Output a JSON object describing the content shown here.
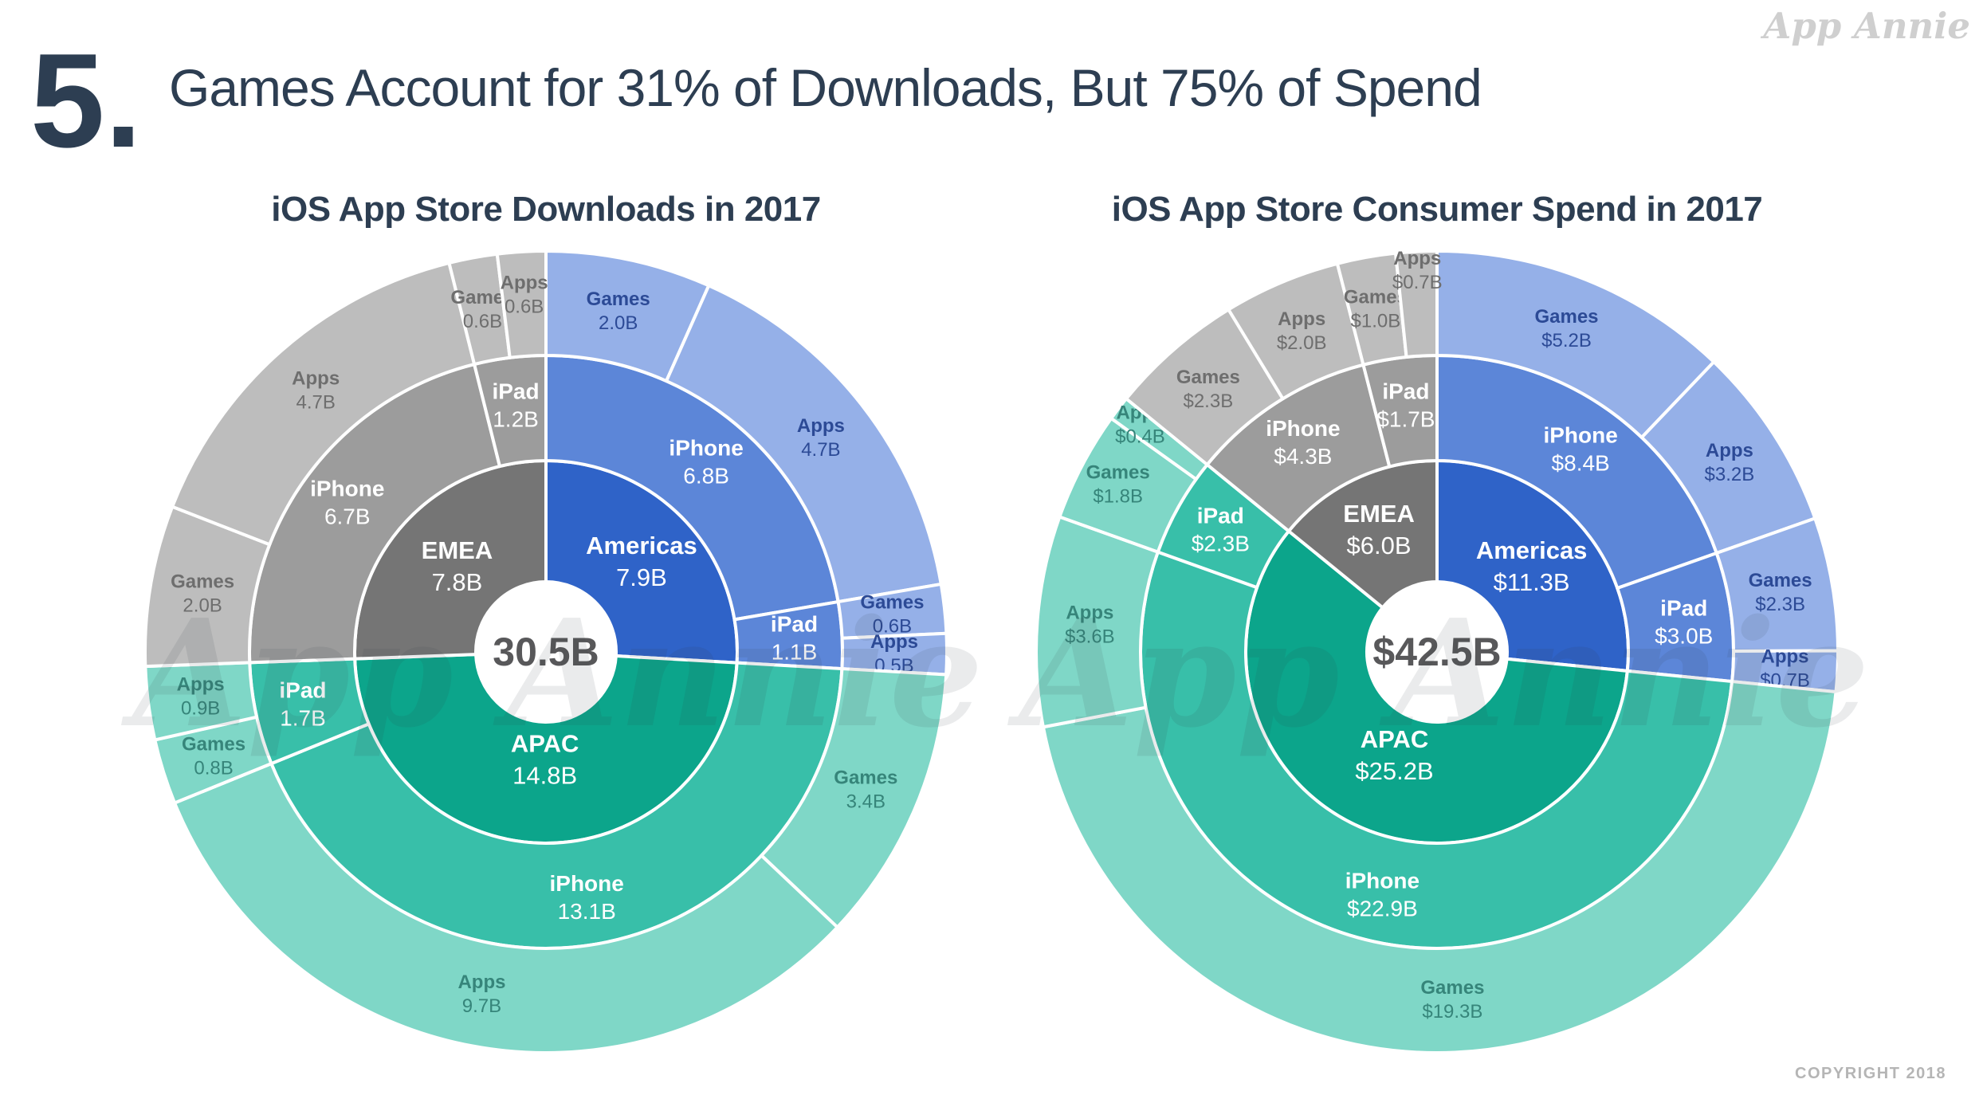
{
  "header": {
    "number": "5.",
    "title": "Games Account for 31% of Downloads, But 75% of Spend"
  },
  "brand": {
    "logo": "App Annie",
    "copyright": "COPYRIGHT 2018"
  },
  "watermark": "App Annie",
  "chart_data": [
    {
      "type": "sunburst",
      "title": "iOS App Store Downloads in 2017",
      "center_label": "30.5B",
      "total": 30.5,
      "start_angle_deg": 0,
      "direction": "clockwise",
      "ring_order": [
        "region",
        "device",
        "category"
      ],
      "center_text_color": "#58585a",
      "regions": [
        {
          "name": "Americas",
          "display": "7.9B",
          "value": 7.9,
          "label_r": 165,
          "colors": [
            "#2f63c8",
            "#5c86d8",
            "#95b0e8"
          ],
          "outer_text_color": "#2c4a96",
          "devices": [
            {
              "name": "iPhone",
              "display": "6.8B",
              "value": 6.8,
              "categories": [
                {
                  "name": "Games",
                  "display": "2.0B",
                  "value": 2.0
                },
                {
                  "name": "Apps",
                  "display": "4.7B",
                  "value": 4.7
                }
              ]
            },
            {
              "name": "iPad",
              "display": "1.1B",
              "value": 1.1,
              "categories": [
                {
                  "name": "Games",
                  "display": "0.6B",
                  "value": 0.6
                },
                {
                  "name": "Apps",
                  "display": "0.5B",
                  "value": 0.5
                }
              ]
            }
          ]
        },
        {
          "name": "APAC",
          "display": "14.8B",
          "value": 14.8,
          "label_r": 135,
          "colors": [
            "#0ca58b",
            "#38bfa9",
            "#7fd7c7"
          ],
          "outer_text_color": "#36857a",
          "devices": [
            {
              "name": "iPhone",
              "display": "13.1B",
              "value": 13.1,
              "categories": [
                {
                  "name": "Games",
                  "display": "3.4B",
                  "value": 3.4
                },
                {
                  "name": "Apps",
                  "display": "9.7B",
                  "value": 9.7
                }
              ]
            },
            {
              "name": "iPad",
              "display": "1.7B",
              "value": 1.7,
              "categories": [
                {
                  "name": "Games",
                  "display": "0.8B",
                  "value": 0.8
                },
                {
                  "name": "Apps",
                  "display": "0.9B",
                  "value": 0.9
                }
              ]
            }
          ]
        },
        {
          "name": "EMEA",
          "display": "7.8B",
          "value": 7.8,
          "label_r": 155,
          "colors": [
            "#757575",
            "#9c9c9c",
            "#bdbdbd"
          ],
          "outer_text_color": "#6e6e6e",
          "devices": [
            {
              "name": "iPhone",
              "display": "6.7B",
              "value": 6.7,
              "categories": [
                {
                  "name": "Games",
                  "display": "2.0B",
                  "value": 2.0
                },
                {
                  "name": "Apps",
                  "display": "4.7B",
                  "value": 4.7
                }
              ]
            },
            {
              "name": "iPad",
              "display": "1.2B",
              "value": 1.2,
              "categories": [
                {
                  "name": "Games",
                  "display": "0.6B",
                  "value": 0.6
                },
                {
                  "name": "Apps",
                  "display": "0.6B",
                  "value": 0.6,
                  "label_r_offset": 12
                }
              ]
            }
          ]
        }
      ]
    },
    {
      "type": "sunburst",
      "title": "iOS App Store Consumer Spend in 2017",
      "center_label": "$42.5B",
      "total": 42.5,
      "start_angle_deg": 0,
      "direction": "clockwise",
      "ring_order": [
        "region",
        "device",
        "category"
      ],
      "center_text_color": "#58585a",
      "regions": [
        {
          "name": "Americas",
          "display": "$11.3B",
          "value": 11.3,
          "label_r": 160,
          "colors": [
            "#2f63c8",
            "#5c86d8",
            "#95b0e8"
          ],
          "outer_text_color": "#2c4a96",
          "devices": [
            {
              "name": "iPhone",
              "display": "$8.4B",
              "value": 8.4,
              "categories": [
                {
                  "name": "Games",
                  "display": "$5.2B",
                  "value": 5.2
                },
                {
                  "name": "Apps",
                  "display": "$3.2B",
                  "value": 3.2
                }
              ]
            },
            {
              "name": "iPad",
              "display": "$3.0B",
              "value": 3.0,
              "categories": [
                {
                  "name": "Games",
                  "display": "$2.3B",
                  "value": 2.3
                },
                {
                  "name": "Apps",
                  "display": "$0.7B",
                  "value": 0.7
                }
              ]
            }
          ]
        },
        {
          "name": "APAC",
          "display": "$25.2B",
          "value": 25.2,
          "label_r": 140,
          "colors": [
            "#0ca58b",
            "#38bfa9",
            "#7fd7c7"
          ],
          "outer_text_color": "#36857a",
          "devices": [
            {
              "name": "iPhone",
              "display": "$22.9B",
              "value": 22.9,
              "categories": [
                {
                  "name": "Games",
                  "display": "$19.3B",
                  "value": 19.3
                },
                {
                  "name": "Apps",
                  "display": "$3.6B",
                  "value": 3.6
                }
              ]
            },
            {
              "name": "iPad",
              "display": "$2.3B",
              "value": 2.3,
              "categories": [
                {
                  "name": "Games",
                  "display": "$1.8B",
                  "value": 1.8,
                  "label_r_offset": 15
                },
                {
                  "name": "Apps",
                  "display": "$0.4B",
                  "value": 0.4,
                  "label_r_offset": 32
                }
              ]
            }
          ]
        },
        {
          "name": "EMEA",
          "display": "$6.0B",
          "value": 6.0,
          "label_r": 170,
          "colors": [
            "#757575",
            "#9c9c9c",
            "#bdbdbd"
          ],
          "outer_text_color": "#6e6e6e",
          "devices": [
            {
              "name": "iPhone",
              "display": "$4.3B",
              "value": 4.3,
              "categories": [
                {
                  "name": "Games",
                  "display": "$2.3B",
                  "value": 2.3
                },
                {
                  "name": "Apps",
                  "display": "$2.0B",
                  "value": 2.0
                }
              ]
            },
            {
              "name": "iPad",
              "display": "$1.7B",
              "value": 1.7,
              "categories": [
                {
                  "name": "Games",
                  "display": "$1.0B",
                  "value": 1.0
                },
                {
                  "name": "Apps",
                  "display": "$0.7B",
                  "value": 0.7,
                  "label_r_offset": 42
                }
              ]
            }
          ]
        }
      ]
    }
  ]
}
